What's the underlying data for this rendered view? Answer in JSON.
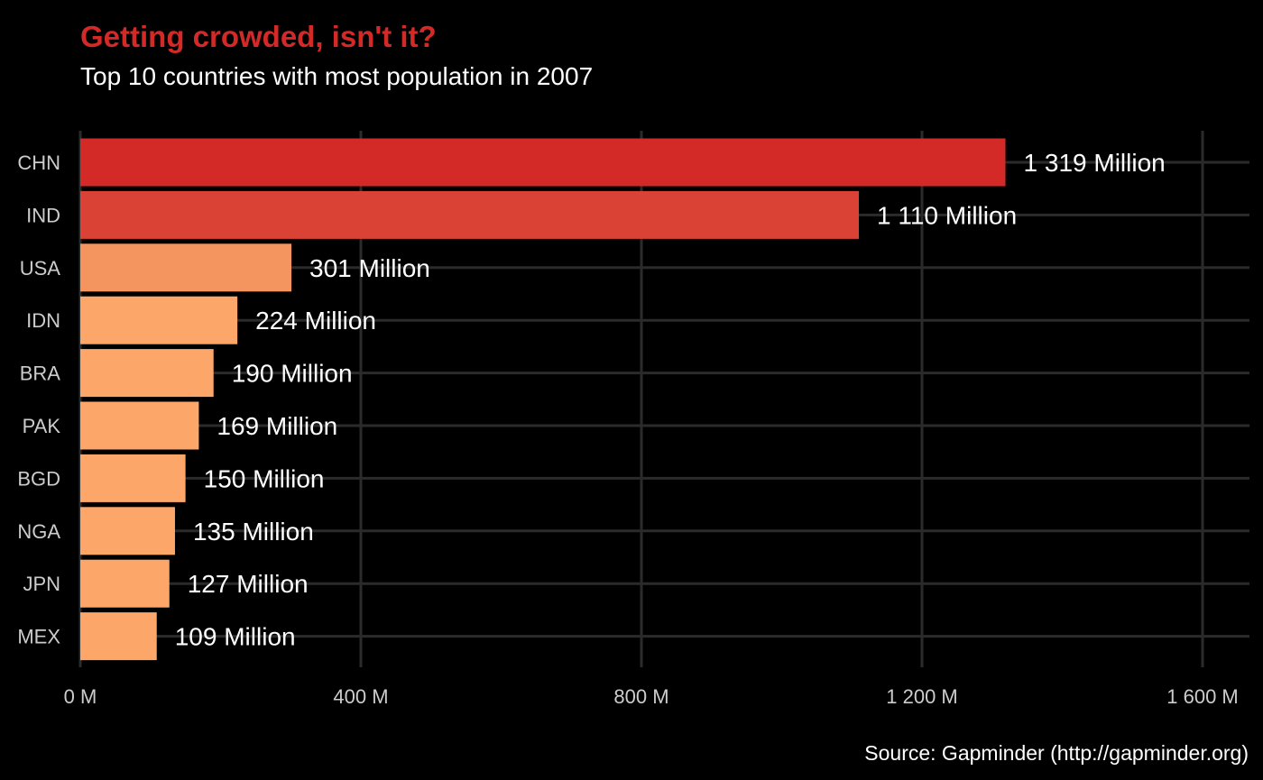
{
  "chart_data": {
    "type": "bar",
    "orientation": "horizontal",
    "title": "Getting crowded, isn't it?",
    "subtitle": "Top 10 countries with most population in 2007",
    "caption": "Source: Gapminder (http://gapminder.org)",
    "xlabel": "",
    "ylabel": "",
    "xlim": [
      0,
      1650
    ],
    "x_ticks": [
      {
        "value": 0,
        "label": "0 M"
      },
      {
        "value": 400,
        "label": "400 M"
      },
      {
        "value": 800,
        "label": "800 M"
      },
      {
        "value": 1200,
        "label": "1 200 M"
      },
      {
        "value": 1600,
        "label": "1 600 M"
      }
    ],
    "categories": [
      "CHN",
      "IND",
      "USA",
      "IDN",
      "BRA",
      "PAK",
      "BGD",
      "NGA",
      "JPN",
      "MEX"
    ],
    "values": [
      1319,
      1110,
      301,
      224,
      190,
      169,
      150,
      135,
      127,
      109
    ],
    "data_labels": [
      "1 319 Million",
      "1 110 Million",
      "301 Million",
      "224 Million",
      "190 Million",
      "169 Million",
      "150 Million",
      "135 Million",
      "127 Million",
      "109 Million"
    ],
    "grid": true,
    "legend": "none",
    "colors": {
      "background": "#000000",
      "gridline": "#2b2b2b",
      "title": "#d32a27",
      "text": "#ffffff",
      "axis_text": "#cccccc",
      "bar_low": "#fca66a",
      "bar_mid": "#f4945f",
      "bar_high": "#d32a27"
    }
  }
}
